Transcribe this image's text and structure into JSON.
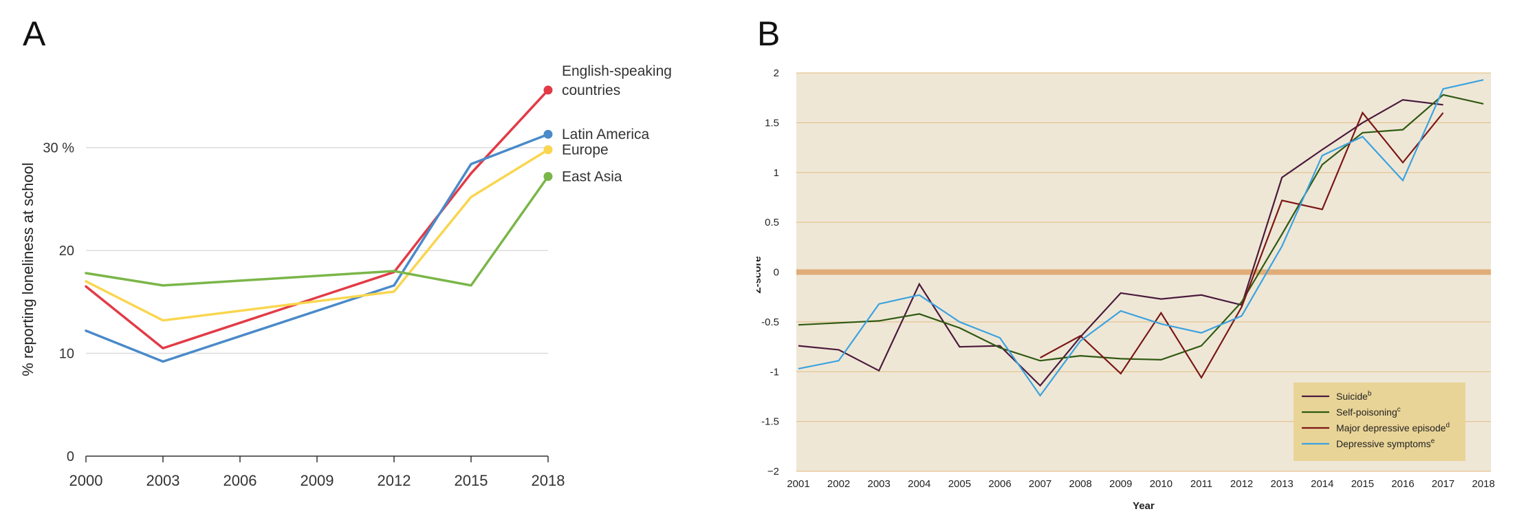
{
  "chart_data": [
    {
      "panel_label": "A",
      "type": "line",
      "ylabel": "% reporting loneliness at school",
      "x": [
        2000,
        2003,
        2012,
        2015,
        2018
      ],
      "xticks": [
        "2000",
        "2003",
        "2006",
        "2009",
        "2012",
        "2015",
        "2018"
      ],
      "xtick_values": [
        2000,
        2003,
        2006,
        2009,
        2012,
        2015,
        2018
      ],
      "xlim": [
        2000,
        2018
      ],
      "ylim": [
        0,
        37
      ],
      "yticks": [
        {
          "value": 0,
          "label": "0"
        },
        {
          "value": 10,
          "label": "10"
        },
        {
          "value": 20,
          "label": "20"
        },
        {
          "value": 30,
          "label": "30 %"
        }
      ],
      "grid": "horizontal",
      "legend": "direct labels at line ends",
      "series": [
        {
          "name_lines": [
            "English-speaking",
            "countries"
          ],
          "color": "#e23b46",
          "values": [
            16.5,
            10.5,
            17.9,
            27.5,
            35.6
          ]
        },
        {
          "name_lines": [
            "Latin America"
          ],
          "color": "#4a8ac9",
          "values": [
            12.2,
            9.2,
            16.6,
            28.4,
            31.3
          ]
        },
        {
          "name_lines": [
            "Europe"
          ],
          "color": "#f9d64f",
          "values": [
            17.0,
            13.2,
            16.0,
            25.2,
            29.8
          ]
        },
        {
          "name_lines": [
            "East Asia"
          ],
          "color": "#7ab648",
          "values": [
            17.8,
            16.6,
            18.0,
            16.6,
            27.2
          ]
        }
      ]
    },
    {
      "panel_label": "B",
      "type": "line",
      "xlabel": "Year",
      "ylabel": "Z-score",
      "x": [
        2001,
        2002,
        2003,
        2004,
        2005,
        2006,
        2007,
        2008,
        2009,
        2010,
        2011,
        2012,
        2013,
        2014,
        2015,
        2016,
        2017,
        2018
      ],
      "xticks": [
        "2001",
        "2002",
        "2003",
        "2004",
        "2005",
        "2006",
        "2007",
        "2008",
        "2009",
        "2010",
        "2011",
        "2012",
        "2013",
        "2014",
        "2015",
        "2016",
        "2017",
        "2018"
      ],
      "ylim": [
        -2,
        2
      ],
      "yticks": [
        {
          "value": 2,
          "label": "2"
        },
        {
          "value": 1.5,
          "label": "1.5"
        },
        {
          "value": 1,
          "label": "1"
        },
        {
          "value": 0.5,
          "label": "0.5"
        },
        {
          "value": 0,
          "label": "0"
        },
        {
          "value": -0.5,
          "label": "-0.5"
        },
        {
          "value": -1,
          "label": "-1"
        },
        {
          "value": -1.5,
          "label": "-1.5"
        },
        {
          "value": -2,
          "label": "−2"
        }
      ],
      "grid": "horizontal",
      "legend": "bottom-right",
      "series": [
        {
          "name": "Suicide",
          "sup": "b",
          "color": "#4a1a3c",
          "values": [
            -0.74,
            -0.78,
            -0.99,
            -0.12,
            -0.75,
            -0.74,
            -1.14,
            -0.65,
            -0.21,
            -0.27,
            -0.23,
            -0.33,
            0.95,
            1.23,
            1.5,
            1.73,
            1.68,
            null
          ]
        },
        {
          "name": "Self-poisoning",
          "sup": "c",
          "color": "#2f5a12",
          "values": [
            -0.53,
            -0.51,
            -0.49,
            -0.42,
            -0.56,
            -0.76,
            -0.89,
            -0.84,
            -0.87,
            -0.88,
            -0.74,
            -0.3,
            0.38,
            1.08,
            1.4,
            1.43,
            1.78,
            1.69
          ]
        },
        {
          "name": "Major depressive episode",
          "sup": "d",
          "color": "#7a1616",
          "values": [
            null,
            null,
            null,
            null,
            null,
            null,
            -0.86,
            -0.64,
            -1.02,
            -0.41,
            -1.06,
            -0.35,
            0.72,
            0.63,
            1.6,
            1.1,
            1.6,
            null
          ]
        },
        {
          "name": "Depressive symptoms",
          "sup": "e",
          "color": "#3aa2e0",
          "values": [
            -0.97,
            -0.89,
            -0.32,
            -0.23,
            -0.5,
            -0.66,
            -1.24,
            -0.69,
            -0.39,
            -0.52,
            -0.61,
            -0.44,
            0.26,
            1.17,
            1.36,
            0.92,
            1.84,
            1.93
          ]
        }
      ]
    }
  ]
}
